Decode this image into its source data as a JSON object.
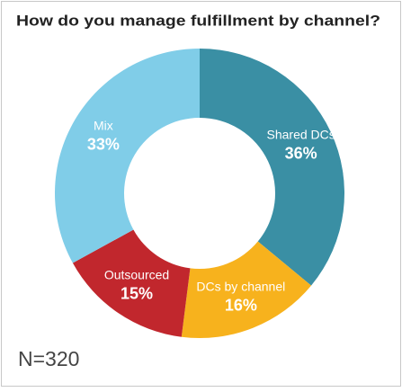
{
  "chart_data": {
    "type": "pie",
    "donut": true,
    "title": "How do you manage fulfillment by channel?",
    "categories": [
      "Shared DCs",
      "DCs by channel",
      "Outsourced",
      "Mix"
    ],
    "values": [
      36,
      16,
      15,
      33
    ],
    "value_labels": [
      "36%",
      "16%",
      "15%",
      "33%"
    ],
    "colors": [
      "#3a8fa4",
      "#f7b21d",
      "#c1272d",
      "#80cde8"
    ],
    "annotation": "N=320"
  }
}
